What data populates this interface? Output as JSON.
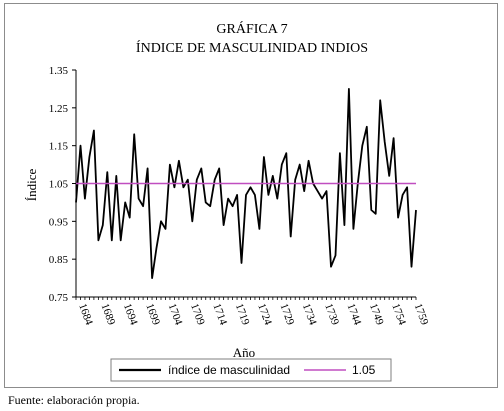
{
  "chart_data": {
    "type": "line",
    "title": "GRÁFICA 7",
    "subtitle": "ÍNDICE DE MASCULINIDAD INDIOS",
    "xlabel": "Año",
    "ylabel": "Índice",
    "ylim": [
      0.75,
      1.35
    ],
    "yticks": [
      "0.75",
      "0.85",
      "0.95",
      "1.05",
      "1.15",
      "1.25",
      "1.35"
    ],
    "xlim": [
      1684,
      1760
    ],
    "xticks": [
      "1684",
      "1689",
      "1694",
      "1699",
      "1704",
      "1709",
      "1714",
      "1719",
      "1724",
      "1729",
      "1734",
      "1739",
      "1744",
      "1749",
      "1754",
      "1759"
    ],
    "grid": false,
    "legend": "bottom",
    "series": [
      {
        "name": "índice de masculinidad",
        "color": "#000000",
        "x": [
          1684,
          1685,
          1686,
          1687,
          1688,
          1689,
          1690,
          1691,
          1692,
          1693,
          1694,
          1695,
          1696,
          1697,
          1698,
          1699,
          1700,
          1701,
          1702,
          1703,
          1704,
          1705,
          1706,
          1707,
          1708,
          1709,
          1710,
          1711,
          1712,
          1713,
          1714,
          1715,
          1716,
          1717,
          1718,
          1719,
          1720,
          1721,
          1722,
          1723,
          1724,
          1725,
          1726,
          1727,
          1728,
          1729,
          1730,
          1731,
          1732,
          1733,
          1734,
          1735,
          1736,
          1737,
          1738,
          1739,
          1740,
          1741,
          1742,
          1743,
          1744,
          1745,
          1746,
          1747,
          1748,
          1749,
          1750,
          1751,
          1752,
          1753,
          1754,
          1755,
          1756,
          1757,
          1758,
          1759,
          1760
        ],
        "y": [
          1.0,
          1.15,
          1.01,
          1.12,
          1.19,
          0.9,
          0.94,
          1.08,
          0.9,
          1.07,
          0.9,
          1.0,
          0.96,
          1.18,
          1.01,
          0.99,
          1.09,
          0.8,
          0.88,
          0.95,
          0.93,
          1.1,
          1.04,
          1.11,
          1.04,
          1.06,
          0.95,
          1.06,
          1.09,
          1.0,
          0.99,
          1.06,
          1.09,
          0.94,
          1.01,
          0.99,
          1.02,
          0.84,
          1.02,
          1.04,
          1.02,
          0.93,
          1.12,
          1.02,
          1.07,
          1.01,
          1.1,
          1.13,
          0.91,
          1.06,
          1.1,
          1.03,
          1.11,
          1.05,
          1.03,
          1.01,
          1.03,
          0.83,
          0.86,
          1.13,
          0.94,
          1.3,
          0.93,
          1.05,
          1.15,
          1.2,
          0.98,
          0.97,
          1.27,
          1.16,
          1.07,
          1.17,
          0.96,
          1.02,
          1.04,
          0.83,
          0.98
        ]
      },
      {
        "name": "1.05",
        "color": "#c04ec0",
        "x": [
          1684,
          1760
        ],
        "y": [
          1.05,
          1.05
        ]
      }
    ]
  },
  "source": "Fuente: elaboración propia."
}
